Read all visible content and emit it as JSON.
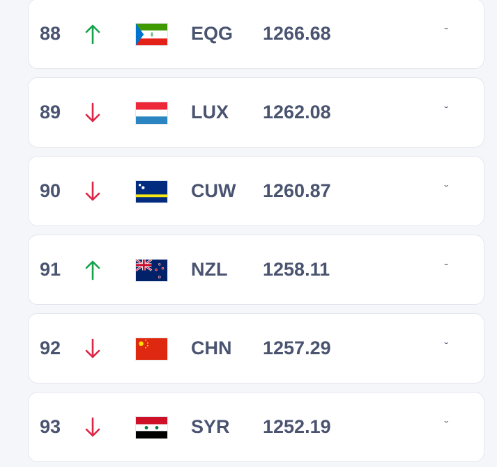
{
  "colors": {
    "up": "#16a34a",
    "down": "#dc2645",
    "text": "#4a5470"
  },
  "rows": [
    {
      "rank": "88",
      "trend": "up",
      "flag": "equatorial-guinea-flag",
      "code": "EQG",
      "points": "1266.68"
    },
    {
      "rank": "89",
      "trend": "down",
      "flag": "luxembourg-flag",
      "code": "LUX",
      "points": "1262.08"
    },
    {
      "rank": "90",
      "trend": "down",
      "flag": "curacao-flag",
      "code": "CUW",
      "points": "1260.87"
    },
    {
      "rank": "91",
      "trend": "up",
      "flag": "new-zealand-flag",
      "code": "NZL",
      "points": "1258.11"
    },
    {
      "rank": "92",
      "trend": "down",
      "flag": "china-flag",
      "code": "CHN",
      "points": "1257.29"
    },
    {
      "rank": "93",
      "trend": "down",
      "flag": "syria-flag",
      "code": "SYR",
      "points": "1252.19"
    }
  ],
  "expand_icon": "chevron-down-icon"
}
